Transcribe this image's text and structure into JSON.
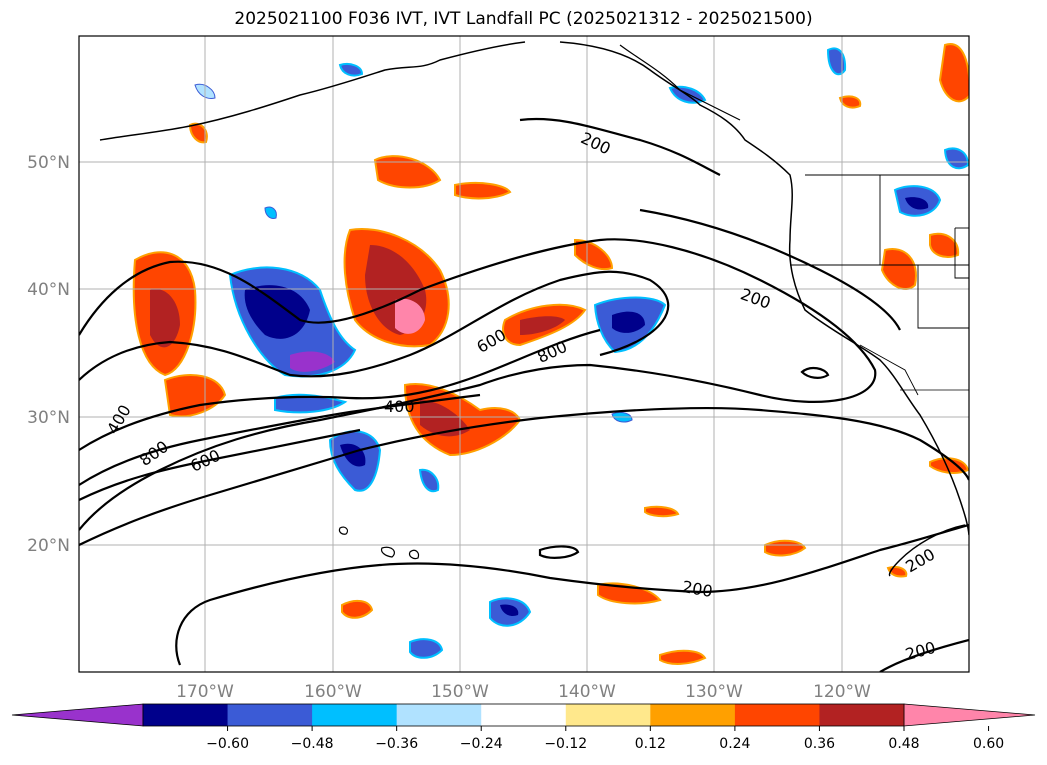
{
  "title": "2025021100 F036 IVT, IVT Landfall PC (2025021312 - 2025021500)",
  "lat_labels": [
    "50°N",
    "40°N",
    "30°N",
    "20°N"
  ],
  "lon_labels": [
    "170°W",
    "160°W",
    "150°W",
    "140°W",
    "130°W",
    "120°W"
  ],
  "contour_labels": [
    "200",
    "200",
    "200",
    "200",
    "200",
    "400",
    "400",
    "600",
    "600",
    "800",
    "800"
  ],
  "colorbar": {
    "ticks": [
      "−0.60",
      "−0.48",
      "−0.36",
      "−0.24",
      "−0.12",
      "0.12",
      "0.24",
      "0.36",
      "0.48",
      "0.60"
    ],
    "colors": [
      "#9932cc",
      "#00008b",
      "#3b5bd6",
      "#00bfff",
      "#b0e2ff",
      "#ffffff",
      "#ffe88c",
      "#ffa000",
      "#ff4500",
      "#b22222",
      "#ff85aa"
    ]
  },
  "colors": {
    "contour": "#000000",
    "gridline": "#b0b0b0",
    "axis_label": "#808080"
  }
}
